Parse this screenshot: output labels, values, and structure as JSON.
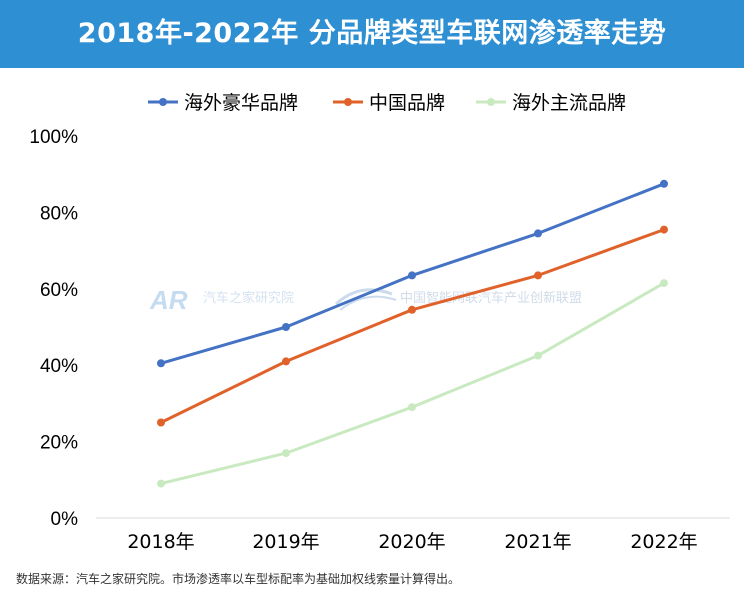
{
  "header": {
    "title": "2018年-2022年 分品牌类型车联网渗透率走势"
  },
  "watermarks": {
    "left": "汽车之家研究院",
    "right": "中国智能网联汽车产业创新联盟"
  },
  "footer": {
    "source": "数据来源：汽车之家研究院。市场渗透率以车型标配率为基础加权线索量计算得出。"
  },
  "colors": {
    "title_bg": "#2e8fd3",
    "luxury": "#4472c4",
    "china": "#e0622a",
    "mainstream": "#c9eac1"
  },
  "chart_data": {
    "type": "line",
    "categories": [
      "2018年",
      "2019年",
      "2020年",
      "2021年",
      "2022年"
    ],
    "yticks": [
      "0%",
      "20%",
      "40%",
      "60%",
      "80%",
      "100%"
    ],
    "ylim": [
      0,
      100
    ],
    "legend_position": "top-center",
    "grid": false,
    "series": [
      {
        "name": "海外豪华品牌",
        "values": [
          40.5,
          50,
          63.5,
          74.5,
          87.5
        ],
        "color": "#4472c4"
      },
      {
        "name": "中国品牌",
        "values": [
          25,
          41,
          54.5,
          63.5,
          75.5
        ],
        "color": "#e0622a"
      },
      {
        "name": "海外主流品牌",
        "values": [
          9,
          17,
          29,
          42.5,
          61.5
        ],
        "color": "#c9eac1"
      }
    ]
  }
}
